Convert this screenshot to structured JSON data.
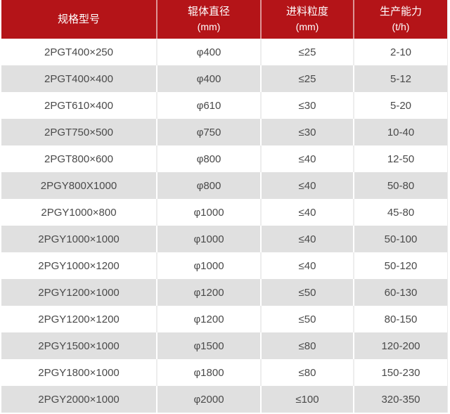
{
  "chart_data": {
    "type": "table",
    "title": "",
    "columns": [
      {
        "label": "规格型号",
        "unit": ""
      },
      {
        "label": "辊体直径",
        "unit": "(mm)"
      },
      {
        "label": "进料粒度",
        "unit": "(mm)"
      },
      {
        "label": "生产能力",
        "unit": "(t/h)"
      }
    ],
    "rows": [
      [
        "2PGT400×250",
        "φ400",
        "≤25",
        "2-10"
      ],
      [
        "2PGT400×400",
        "φ400",
        "≤25",
        "5-12"
      ],
      [
        "2PGT610×400",
        "φ610",
        "≤30",
        "5-20"
      ],
      [
        "2PGT750×500",
        "φ750",
        "≤30",
        "10-40"
      ],
      [
        "2PGT800×600",
        "φ800",
        "≤40",
        "12-50"
      ],
      [
        "2PGY800X1000",
        "φ800",
        "≤40",
        "50-80"
      ],
      [
        "2PGY1000×800",
        "φ1000",
        "≤40",
        "45-80"
      ],
      [
        "2PGY1000×1000",
        "φ1000",
        "≤40",
        "50-100"
      ],
      [
        "2PGY1000×1200",
        "φ1000",
        "≤40",
        "50-120"
      ],
      [
        "2PGY1200×1000",
        "φ1200",
        "≤50",
        "60-130"
      ],
      [
        "2PGY1200×1200",
        "φ1200",
        "≤50",
        "80-150"
      ],
      [
        "2PGY1500×1000",
        "φ1500",
        "≤80",
        "120-200"
      ],
      [
        "2PGY1800×1000",
        "φ1800",
        "≤80",
        "150-230"
      ],
      [
        "2PGY2000×1000",
        "φ2000",
        "≤100",
        "320-350"
      ]
    ],
    "layout": {
      "header_position": "top",
      "zebra_striping": true
    }
  },
  "colors": {
    "header_bg": "#b41418",
    "header_text": "#ffffff",
    "row_bg": "#ffffff",
    "row_alt_bg": "#e0e0e0",
    "body_text": "#4a4a4a"
  },
  "column_name_keys": [
    "spec-model",
    "roller-diameter",
    "feed-size",
    "capacity"
  ]
}
